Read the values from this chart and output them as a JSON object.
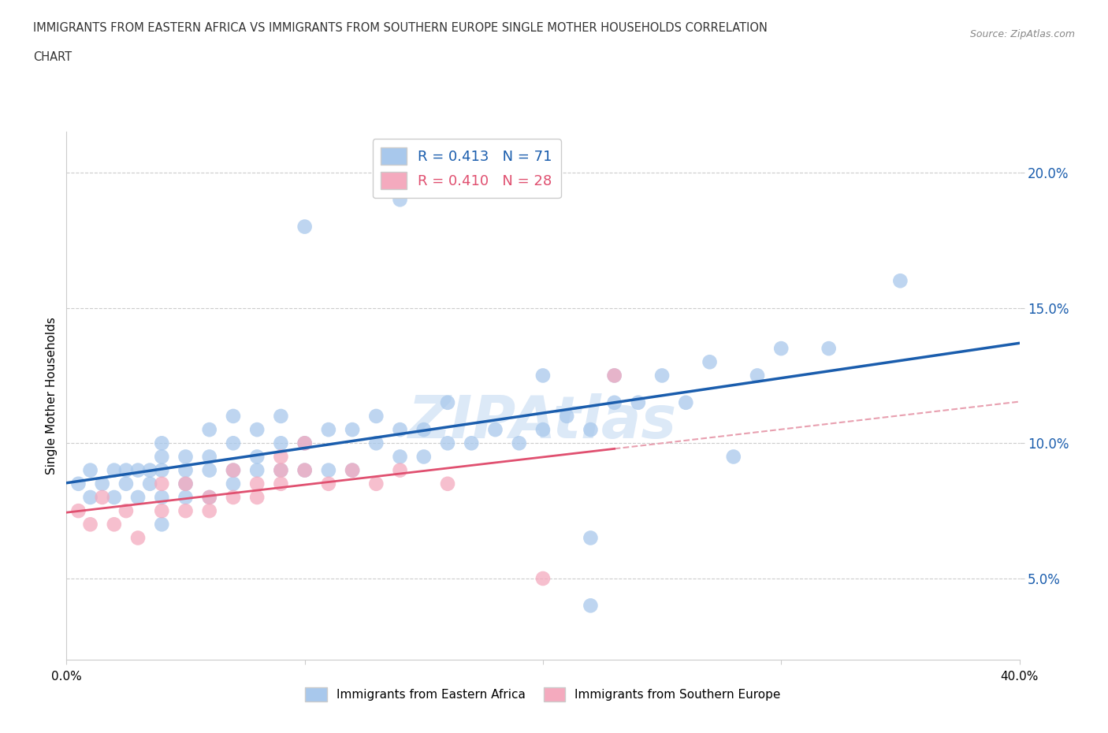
{
  "title_line1": "IMMIGRANTS FROM EASTERN AFRICA VS IMMIGRANTS FROM SOUTHERN EUROPE SINGLE MOTHER HOUSEHOLDS CORRELATION",
  "title_line2": "CHART",
  "source": "Source: ZipAtlas.com",
  "ylabel": "Single Mother Households",
  "xlim": [
    0.0,
    0.4
  ],
  "ylim": [
    0.02,
    0.215
  ],
  "yticks": [
    0.05,
    0.1,
    0.15,
    0.2
  ],
  "ytick_labels": [
    "5.0%",
    "10.0%",
    "15.0%",
    "20.0%"
  ],
  "blue_R": 0.413,
  "blue_N": 71,
  "pink_R": 0.41,
  "pink_N": 28,
  "blue_color": "#A8C8EC",
  "pink_color": "#F4AABE",
  "blue_line_color": "#1A5DAD",
  "pink_line_color": "#E05070",
  "pink_dash_color": "#E8A0B0",
  "watermark": "ZIPAtlas",
  "blue_scatter_x": [
    0.005,
    0.01,
    0.01,
    0.015,
    0.02,
    0.02,
    0.025,
    0.025,
    0.03,
    0.03,
    0.035,
    0.035,
    0.04,
    0.04,
    0.04,
    0.04,
    0.04,
    0.05,
    0.05,
    0.05,
    0.05,
    0.06,
    0.06,
    0.06,
    0.06,
    0.07,
    0.07,
    0.07,
    0.07,
    0.08,
    0.08,
    0.08,
    0.09,
    0.09,
    0.09,
    0.1,
    0.1,
    0.11,
    0.11,
    0.12,
    0.12,
    0.13,
    0.13,
    0.14,
    0.14,
    0.15,
    0.15,
    0.16,
    0.16,
    0.17,
    0.18,
    0.19,
    0.2,
    0.21,
    0.22,
    0.23,
    0.23,
    0.24,
    0.25,
    0.26,
    0.27,
    0.28,
    0.29,
    0.3,
    0.32,
    0.14,
    0.2,
    0.22,
    0.1,
    0.35,
    0.22
  ],
  "blue_scatter_y": [
    0.085,
    0.08,
    0.09,
    0.085,
    0.08,
    0.09,
    0.085,
    0.09,
    0.08,
    0.09,
    0.085,
    0.09,
    0.07,
    0.08,
    0.09,
    0.095,
    0.1,
    0.08,
    0.085,
    0.09,
    0.095,
    0.08,
    0.09,
    0.095,
    0.105,
    0.085,
    0.09,
    0.1,
    0.11,
    0.09,
    0.095,
    0.105,
    0.09,
    0.1,
    0.11,
    0.09,
    0.1,
    0.09,
    0.105,
    0.09,
    0.105,
    0.1,
    0.11,
    0.095,
    0.105,
    0.095,
    0.105,
    0.1,
    0.115,
    0.1,
    0.105,
    0.1,
    0.105,
    0.11,
    0.105,
    0.115,
    0.125,
    0.115,
    0.125,
    0.115,
    0.13,
    0.095,
    0.125,
    0.135,
    0.135,
    0.19,
    0.125,
    0.065,
    0.18,
    0.16,
    0.04
  ],
  "pink_scatter_x": [
    0.005,
    0.01,
    0.015,
    0.02,
    0.025,
    0.03,
    0.04,
    0.04,
    0.05,
    0.05,
    0.06,
    0.06,
    0.07,
    0.07,
    0.08,
    0.08,
    0.09,
    0.09,
    0.09,
    0.1,
    0.1,
    0.11,
    0.12,
    0.13,
    0.14,
    0.16,
    0.2,
    0.23
  ],
  "pink_scatter_y": [
    0.075,
    0.07,
    0.08,
    0.07,
    0.075,
    0.065,
    0.075,
    0.085,
    0.075,
    0.085,
    0.075,
    0.08,
    0.08,
    0.09,
    0.08,
    0.085,
    0.085,
    0.09,
    0.095,
    0.09,
    0.1,
    0.085,
    0.09,
    0.085,
    0.09,
    0.085,
    0.05,
    0.125
  ]
}
